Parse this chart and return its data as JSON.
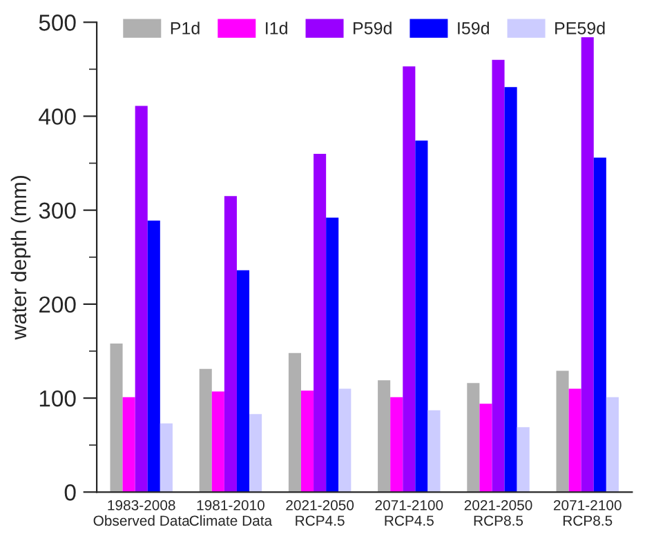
{
  "chart_data": {
    "type": "bar",
    "ylabel": "water depth (mm)",
    "categories": [
      "1983-2008\nObserved Data",
      "1981-2010\nClimate Data",
      "2021-2050\nRCP4.5",
      "2071-2100\nRCP4.5",
      "2021-2050\nRCP8.5",
      "2071-2100\nRCP8.5"
    ],
    "series": [
      {
        "name": "P1d",
        "color": "#b0b0b0",
        "values": [
          158,
          131,
          148,
          119,
          116,
          129
        ]
      },
      {
        "name": "I1d",
        "color": "#ff00ff",
        "values": [
          101,
          107,
          108,
          101,
          94,
          110
        ]
      },
      {
        "name": "P59d",
        "color": "#9900ff",
        "values": [
          411,
          315,
          360,
          453,
          460,
          484
        ]
      },
      {
        "name": "I59d",
        "color": "#0000ff",
        "values": [
          289,
          236,
          292,
          374,
          431,
          356
        ]
      },
      {
        "name": "PE59d",
        "color": "#ccccff",
        "values": [
          73,
          83,
          110,
          87,
          69,
          101
        ]
      }
    ],
    "ylim": [
      0,
      500
    ],
    "yticks": [
      0,
      {
        "value": 50,
        "label": null
      },
      100,
      {
        "value": 150,
        "label": null
      },
      200,
      {
        "value": 250,
        "label": null
      },
      300,
      {
        "value": 350,
        "label": null
      },
      400,
      {
        "value": 450,
        "label": null
      },
      500
    ],
    "grid": false,
    "legend": "top"
  }
}
